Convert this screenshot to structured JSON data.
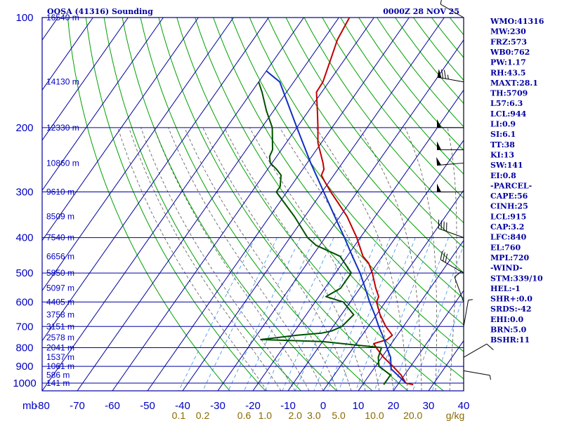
{
  "chart_data": {
    "type": "line",
    "title": "OOSA (41316) Sounding",
    "datetime": "0000Z 28 NOV 25",
    "corner_label": "mb",
    "pressure_ticks": [
      "100",
      "200",
      "300",
      "400",
      "500",
      "600",
      "700",
      "800",
      "900",
      "1000"
    ],
    "temperature_ticks": [
      "-80",
      "-70",
      "-60",
      "-50",
      "-40",
      "-30",
      "-20",
      "-10",
      "0",
      "10",
      "20",
      "30",
      "40"
    ],
    "height_labels": [
      {
        "p": 100,
        "text": "16540 m"
      },
      {
        "p": 150,
        "text": "14130 m"
      },
      {
        "p": 200,
        "text": "12330 m"
      },
      {
        "p": 250,
        "text": "10860 m"
      },
      {
        "p": 300,
        "text": "9610 m"
      },
      {
        "p": 350,
        "text": "8509 m"
      },
      {
        "p": 400,
        "text": "7540 m"
      },
      {
        "p": 450,
        "text": "6656 m"
      },
      {
        "p": 500,
        "text": "5850 m"
      },
      {
        "p": 550,
        "text": "5097 m"
      },
      {
        "p": 600,
        "text": "4405 m"
      },
      {
        "p": 650,
        "text": "3758 m"
      },
      {
        "p": 700,
        "text": "3151 m"
      },
      {
        "p": 750,
        "text": "2578 m"
      },
      {
        "p": 800,
        "text": "2041 m"
      },
      {
        "p": 850,
        "text": "1537 m"
      },
      {
        "p": 900,
        "text": "1061 m"
      },
      {
        "p": 950,
        "text": "586 m"
      },
      {
        "p": 1000,
        "text": "141 m"
      }
    ],
    "mixing_ratio_labels": [
      {
        "w": 0.1,
        "text": "0.1"
      },
      {
        "w": 0.2,
        "text": "0.2"
      },
      {
        "w": 0.6,
        "text": "0.6"
      },
      {
        "w": 1.0,
        "text": "1.0"
      },
      {
        "w": 2.0,
        "text": "2.0"
      },
      {
        "w": 3.0,
        "text": "3.0"
      },
      {
        "w": 5.0,
        "text": "5.0"
      },
      {
        "w": 10.0,
        "text": "10.0"
      },
      {
        "w": 20.0,
        "text": "20.0"
      }
    ],
    "mixing_ratio_unit": "g/kg",
    "series": [
      {
        "key": "temperature",
        "color": "#c00000",
        "points": [
          {
            "p": 1010,
            "t": 24.4
          },
          {
            "p": 1000,
            "t": 22.0
          },
          {
            "p": 950,
            "t": 19.0
          },
          {
            "p": 900,
            "t": 15.0
          },
          {
            "p": 850,
            "t": 10.5
          },
          {
            "p": 800,
            "t": 6.5
          },
          {
            "p": 780,
            "t": 5.0
          },
          {
            "p": 760,
            "t": 8.0
          },
          {
            "p": 740,
            "t": 8.6
          },
          {
            "p": 700,
            "t": 5.0
          },
          {
            "p": 650,
            "t": 1.0
          },
          {
            "p": 600,
            "t": -2.5
          },
          {
            "p": 580,
            "t": -3.0
          },
          {
            "p": 550,
            "t": -5.5
          },
          {
            "p": 500,
            "t": -9.5
          },
          {
            "p": 470,
            "t": -12.5
          },
          {
            "p": 450,
            "t": -15.5
          },
          {
            "p": 400,
            "t": -21.0
          },
          {
            "p": 350,
            "t": -28.0
          },
          {
            "p": 320,
            "t": -33.5
          },
          {
            "p": 300,
            "t": -37.5
          },
          {
            "p": 280,
            "t": -41.5
          },
          {
            "p": 270,
            "t": -43.5
          },
          {
            "p": 260,
            "t": -44.0
          },
          {
            "p": 250,
            "t": -45.5
          },
          {
            "p": 220,
            "t": -51.0
          },
          {
            "p": 200,
            "t": -54.0
          },
          {
            "p": 180,
            "t": -57.5
          },
          {
            "p": 160,
            "t": -61.5
          },
          {
            "p": 150,
            "t": -61.7
          },
          {
            "p": 130,
            "t": -64.0
          },
          {
            "p": 115,
            "t": -66.0
          },
          {
            "p": 100,
            "t": -67.0
          }
        ]
      },
      {
        "key": "dewpoint",
        "color": "#005000",
        "points": [
          {
            "p": 1010,
            "t": 16.0
          },
          {
            "p": 1000,
            "t": 16.0
          },
          {
            "p": 950,
            "t": 16.0
          },
          {
            "p": 900,
            "t": 11.0
          },
          {
            "p": 850,
            "t": 9.0
          },
          {
            "p": 800,
            "t": 8.0
          },
          {
            "p": 770,
            "t": -10.0
          },
          {
            "p": 760,
            "t": -28.0
          },
          {
            "p": 740,
            "t": -18.5
          },
          {
            "p": 730,
            "t": -12.0
          },
          {
            "p": 720,
            "t": -9.5
          },
          {
            "p": 700,
            "t": -7.5
          },
          {
            "p": 650,
            "t": -6.5
          },
          {
            "p": 600,
            "t": -12.0
          },
          {
            "p": 580,
            "t": -18.0
          },
          {
            "p": 550,
            "t": -15.5
          },
          {
            "p": 500,
            "t": -15.5
          },
          {
            "p": 450,
            "t": -22.0
          },
          {
            "p": 420,
            "t": -31.0
          },
          {
            "p": 400,
            "t": -35.0
          },
          {
            "p": 350,
            "t": -43.0
          },
          {
            "p": 300,
            "t": -53.0
          },
          {
            "p": 290,
            "t": -53.0
          },
          {
            "p": 270,
            "t": -55.0
          },
          {
            "p": 260,
            "t": -57.5
          },
          {
            "p": 250,
            "t": -60.5
          },
          {
            "p": 240,
            "t": -62.0
          },
          {
            "p": 230,
            "t": -62.5
          },
          {
            "p": 200,
            "t": -67.0
          },
          {
            "p": 180,
            "t": -72.0
          },
          {
            "p": 160,
            "t": -77.0
          },
          {
            "p": 150,
            "t": -80.0
          }
        ]
      },
      {
        "key": "parcel",
        "color": "#1030c0",
        "points": [
          {
            "p": 1000,
            "t": 22.0
          },
          {
            "p": 950,
            "t": 18.0
          },
          {
            "p": 915,
            "t": 15.0
          },
          {
            "p": 850,
            "t": 12.5
          },
          {
            "p": 800,
            "t": 9.5
          },
          {
            "p": 750,
            "t": 6.5
          },
          {
            "p": 700,
            "t": 3.0
          },
          {
            "p": 650,
            "t": -0.5
          },
          {
            "p": 600,
            "t": -4.5
          },
          {
            "p": 550,
            "t": -8.5
          },
          {
            "p": 500,
            "t": -13.0
          },
          {
            "p": 450,
            "t": -18.5
          },
          {
            "p": 400,
            "t": -24.5
          },
          {
            "p": 350,
            "t": -31.5
          },
          {
            "p": 300,
            "t": -39.5
          },
          {
            "p": 250,
            "t": -49.0
          },
          {
            "p": 200,
            "t": -60.0
          },
          {
            "p": 150,
            "t": -74.0
          },
          {
            "p": 140,
            "t": -80.0
          }
        ]
      }
    ],
    "wind_barbs": [
      {
        "p": 100,
        "dir": 300,
        "kt": 10
      },
      {
        "p": 150,
        "dir": 280,
        "kt": 75
      },
      {
        "p": 200,
        "dir": 270,
        "kt": 50
      },
      {
        "p": 230,
        "dir": 270,
        "kt": 50
      },
      {
        "p": 250,
        "dir": 265,
        "kt": 50
      },
      {
        "p": 300,
        "dir": 270,
        "kt": 50
      },
      {
        "p": 400,
        "dir": 290,
        "kt": 40
      },
      {
        "p": 500,
        "dir": 300,
        "kt": 30
      },
      {
        "p": 600,
        "dir": 340,
        "kt": 10
      },
      {
        "p": 700,
        "dir": 10,
        "kt": 5
      },
      {
        "p": 850,
        "dir": 60,
        "kt": 10
      },
      {
        "p": 925,
        "dir": 100,
        "kt": 5
      }
    ],
    "indices": [
      "WMO:41316",
      "MW:230",
      "FRZ:573",
      "WB0:762",
      "PW:1.17",
      "RH:43.5",
      "MAXT:28.1",
      "TH:5709",
      "L57:6.3",
      "LCL:944",
      "LI:0.9",
      "SI:6.1",
      "TT:38",
      "KI:13",
      "SW:141",
      "EI:0.8",
      "-PARCEL-",
      "CAPE:56",
      "CINH:25",
      "LCL:915",
      "CAP:3.2",
      "LFC:840",
      "EL:760",
      "MPL:720",
      "-WIND-",
      "STM:339/10",
      "HEL:-1",
      "SHR+:0.0",
      "SRDS:-42",
      "EHI:0.0",
      "BRN:5.0",
      "BSHR:11"
    ],
    "colors": {
      "frame": "#0000a0",
      "dry_adiabat": "#00a000",
      "moist_adiabat": "#555555",
      "mixing_ratio": "#3a90e0",
      "label": "#0000c0",
      "mixing_label": "#8a6a00"
    }
  }
}
